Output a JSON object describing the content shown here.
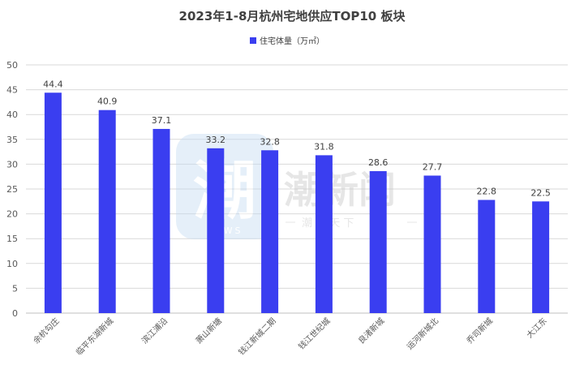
{
  "chart_data": {
    "type": "bar",
    "title": "2023年1-8月杭州宅地供应TOP10 板块",
    "series": [
      {
        "name": "住宅体量（万㎡）",
        "color": "#3a3ef0",
        "values": [
          44.4,
          40.9,
          37.1,
          33.2,
          32.8,
          31.8,
          28.6,
          27.7,
          22.8,
          22.5
        ]
      }
    ],
    "categories": [
      "余杭勾庄",
      "临平东湖新城",
      "滨江浦沿",
      "萧山新塘",
      "钱江新城二期",
      "钱江世纪城",
      "良渚新城",
      "运河新城北",
      "乔司新城",
      "大江东"
    ],
    "ylim": [
      0,
      50
    ],
    "yticks": [
      0,
      5,
      10,
      15,
      20,
      25,
      30,
      35,
      40,
      45,
      50
    ],
    "grid": true,
    "legend_position": "top-center"
  },
  "watermark": {
    "logo_char": "潮",
    "logo_sub": "NEWS",
    "brand": "潮新闻",
    "tagline": "潮 闻 天 下"
  }
}
